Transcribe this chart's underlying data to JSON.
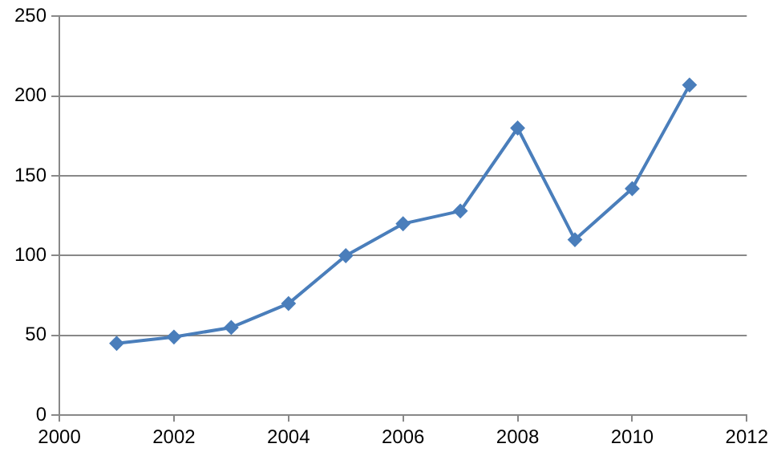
{
  "chart_data": {
    "type": "line",
    "x": [
      2001,
      2002,
      2003,
      2004,
      2005,
      2006,
      2007,
      2008,
      2009,
      2010,
      2011
    ],
    "values": [
      45,
      49,
      55,
      70,
      100,
      120,
      128,
      180,
      110,
      142,
      207
    ],
    "color": "#4a7ebb",
    "marker": "diamond",
    "line_style": "solid",
    "xlim": [
      2000,
      2012
    ],
    "xticks": [
      2000,
      2002,
      2004,
      2006,
      2008,
      2010,
      2012
    ],
    "ylim": [
      0,
      250
    ],
    "yticks": [
      0,
      50,
      100,
      150,
      200,
      250
    ],
    "grid": "y",
    "legend": false
  }
}
